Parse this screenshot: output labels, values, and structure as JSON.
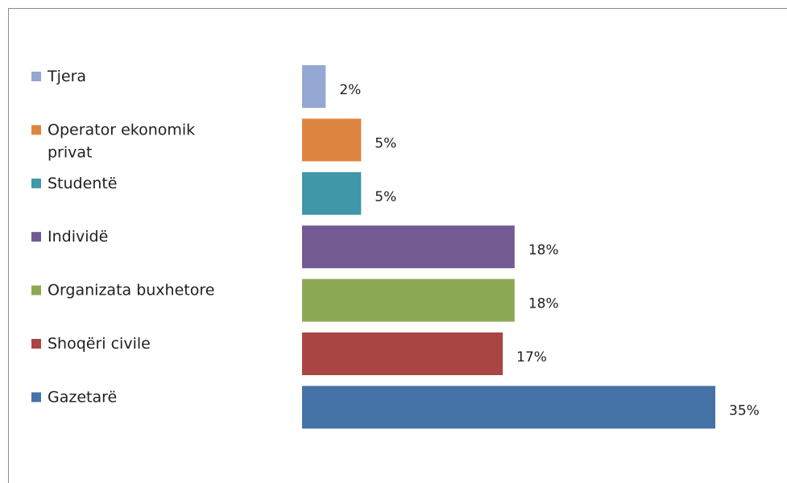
{
  "chart_data": {
    "type": "bar",
    "orientation": "horizontal",
    "legend_position": "left",
    "grid": false,
    "xlim": [
      0,
      35
    ],
    "categories": [
      "Tjera",
      "Operator ekonomik privat",
      "Studentë",
      "Individë",
      "Organizata buxhetore",
      "Shoqëri civile",
      "Gazetarë"
    ],
    "legend_lines": [
      [
        "Tjera"
      ],
      [
        "Operator ekonomik",
        "privat"
      ],
      [
        "Studentë"
      ],
      [
        "Individë"
      ],
      [
        "Organizata buxhetore"
      ],
      [
        "Shoqëri civile"
      ],
      [
        "Gazetarë"
      ]
    ],
    "values": [
      2,
      5,
      5,
      18,
      18,
      17,
      35
    ],
    "value_labels": [
      "2%",
      "5%",
      "5%",
      "18%",
      "18%",
      "17%",
      "35%"
    ],
    "colors": [
      "#95a8d3",
      "#de8542",
      "#3f97a9",
      "#735a93",
      "#8ba954",
      "#a94542",
      "#4572a7"
    ]
  }
}
